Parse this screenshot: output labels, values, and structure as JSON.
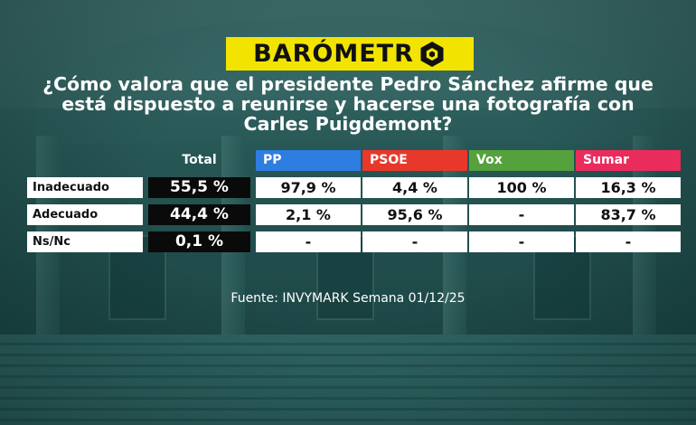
{
  "brand": {
    "logo_text": "BARÓMETR",
    "logo_icon": "hexagon-o-icon",
    "logo_color": "#f2e400"
  },
  "question": "¿Cómo valora que el presidente Pedro Sánchez afirme que está dispuesto a reunirse y hacerse una fotografía con Carles Puigdemont?",
  "source": "Fuente: INVYMARK Semana 01/12/25",
  "chart_data": {
    "type": "table",
    "total_header": "Total",
    "parties": [
      {
        "name": "PP",
        "color": "#2e7de0"
      },
      {
        "name": "PSOE",
        "color": "#e8382c"
      },
      {
        "name": "Vox",
        "color": "#55a13d"
      },
      {
        "name": "Sumar",
        "color": "#ea2c5c"
      }
    ],
    "rows": [
      {
        "label": "Inadecuado",
        "total": "55,5 %",
        "values": [
          "97,9 %",
          "4,4 %",
          "100 %",
          "16,3 %"
        ]
      },
      {
        "label": "Adecuado",
        "total": "44,4 %",
        "values": [
          "2,1 %",
          "95,6 %",
          "-",
          "83,7 %"
        ]
      },
      {
        "label": "Ns/Nc",
        "total": "0,1 %",
        "values": [
          "-",
          "-",
          "-",
          "-"
        ]
      }
    ]
  }
}
